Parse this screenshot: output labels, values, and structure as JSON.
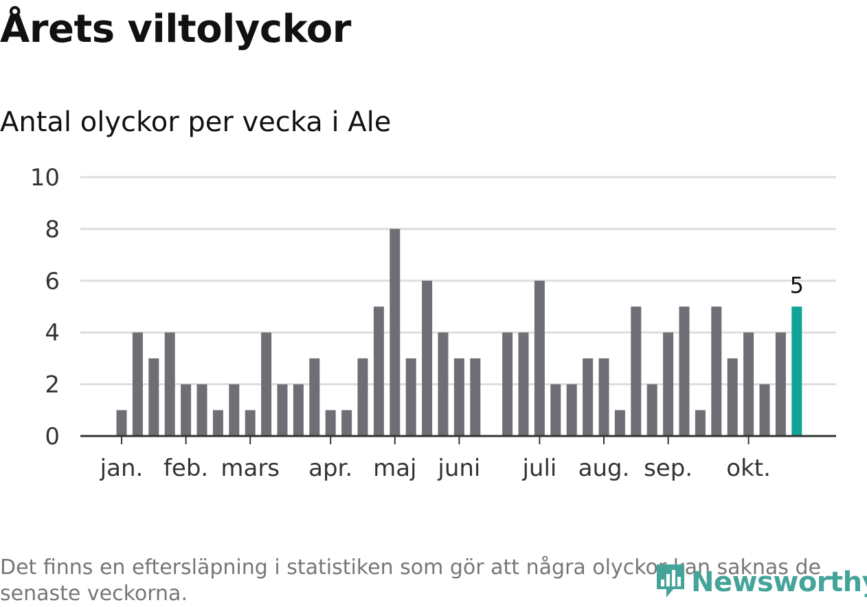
{
  "title": "Årets viltolyckor",
  "chart_data": {
    "type": "bar",
    "subtitle": "Antal olyckor per vecka i Ale",
    "ylim": [
      0,
      10
    ],
    "yticks": [
      0,
      2,
      4,
      6,
      8,
      10
    ],
    "values": [
      1,
      4,
      3,
      4,
      2,
      2,
      1,
      2,
      1,
      4,
      2,
      2,
      3,
      1,
      1,
      3,
      5,
      8,
      3,
      6,
      4,
      3,
      3,
      null,
      4,
      4,
      6,
      2,
      2,
      3,
      3,
      1,
      5,
      2,
      4,
      5,
      1,
      5,
      3,
      4,
      2,
      4,
      5
    ],
    "highlight_label": "5",
    "month_ticks": [
      {
        "label": "jan.",
        "index": 0
      },
      {
        "label": "feb.",
        "index": 4
      },
      {
        "label": "mars",
        "index": 8
      },
      {
        "label": "apr.",
        "index": 13
      },
      {
        "label": "maj",
        "index": 17
      },
      {
        "label": "juni",
        "index": 21
      },
      {
        "label": "juli",
        "index": 26
      },
      {
        "label": "aug.",
        "index": 30
      },
      {
        "label": "sep.",
        "index": 34
      },
      {
        "label": "okt.",
        "index": 39
      }
    ],
    "colors": {
      "bar": "#6f6e74",
      "highlight": "#12a296",
      "grid": "#dddddd",
      "axis": "#333333",
      "text": "#333333"
    }
  },
  "note": "Det finns en eftersläpning i statistiken som gör att några olyckor kan saknas de senaste veckorna.",
  "logo": {
    "text": "Newsworthy",
    "icon": "newsworthy-logo-icon"
  }
}
